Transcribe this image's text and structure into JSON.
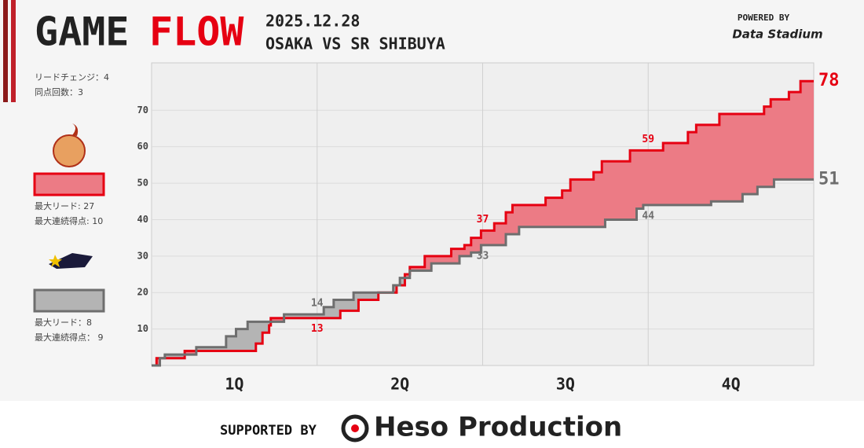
{
  "header": {
    "title_1": "GAME",
    "title_2": "FLOW",
    "date": "2025.12.28",
    "matchup": "OSAKA VS SR SHIBUYA",
    "powered_by": "POWERED BY",
    "data_brand": "Data Stadium"
  },
  "summary": {
    "lead_changes": "リードチェンジ：4",
    "ties": "同点回数：3"
  },
  "chart_data": {
    "type": "step",
    "xlim": [
      0,
      40
    ],
    "ylim": [
      0,
      83
    ],
    "xticks": [
      10,
      20,
      30
    ],
    "yticks": [
      10,
      20,
      30,
      40,
      50,
      60,
      70
    ],
    "categories": [
      "1Q",
      "2Q",
      "3Q",
      "4Q"
    ],
    "grid": true,
    "series": [
      {
        "color": "#e60012",
        "fill": "#ec7b85",
        "x": [
          0,
          0.3,
          2.0,
          6.3,
          6.7,
          7.1,
          7.2,
          11.4,
          12.5,
          13.7,
          14.8,
          15.3,
          15.6,
          16.5,
          18.1,
          18.9,
          19.3,
          19.9,
          20.7,
          21.4,
          21.8,
          23.8,
          24.8,
          25.3,
          26.7,
          27.2,
          28.9,
          30.9,
          32.4,
          32.9,
          34.3,
          37.0,
          37.4,
          38.5,
          39.2
        ],
        "values": [
          0,
          2,
          4,
          6,
          9,
          11,
          13,
          15,
          18,
          20,
          22,
          25,
          27,
          30,
          32,
          33,
          35,
          37,
          39,
          42,
          44,
          46,
          48,
          51,
          53,
          56,
          59,
          61,
          64,
          66,
          69,
          71,
          73,
          75,
          78
        ],
        "quarter_scores": [
          13,
          37,
          59
        ],
        "stats": [
          "最大リード: 27",
          "最大連続得点: 10"
        ]
      },
      {
        "color": "#6e6e6e",
        "fill": "#b4b4b4",
        "x": [
          0,
          0.5,
          0.8,
          2.7,
          4.5,
          5.1,
          5.8,
          8.0,
          10.4,
          11.0,
          12.2,
          14.6,
          15.0,
          15.6,
          16.9,
          18.6,
          19.3,
          19.9,
          21.4,
          22.2,
          27.4,
          29.3,
          29.7,
          33.8,
          35.7,
          36.6,
          37.6
        ],
        "values": [
          0,
          2,
          3,
          5,
          8,
          10,
          12,
          14,
          16,
          18,
          20,
          22,
          24,
          26,
          28,
          30,
          31,
          33,
          36,
          38,
          40,
          43,
          44,
          45,
          47,
          49,
          51
        ],
        "quarter_scores": [
          14,
          33,
          44
        ],
        "stats": [
          "最大リード：8",
          "最大連続得点： 9"
        ]
      }
    ]
  },
  "footer": {
    "supported_by": "SUPPORTED BY",
    "sponsor": "Hesо Production"
  }
}
